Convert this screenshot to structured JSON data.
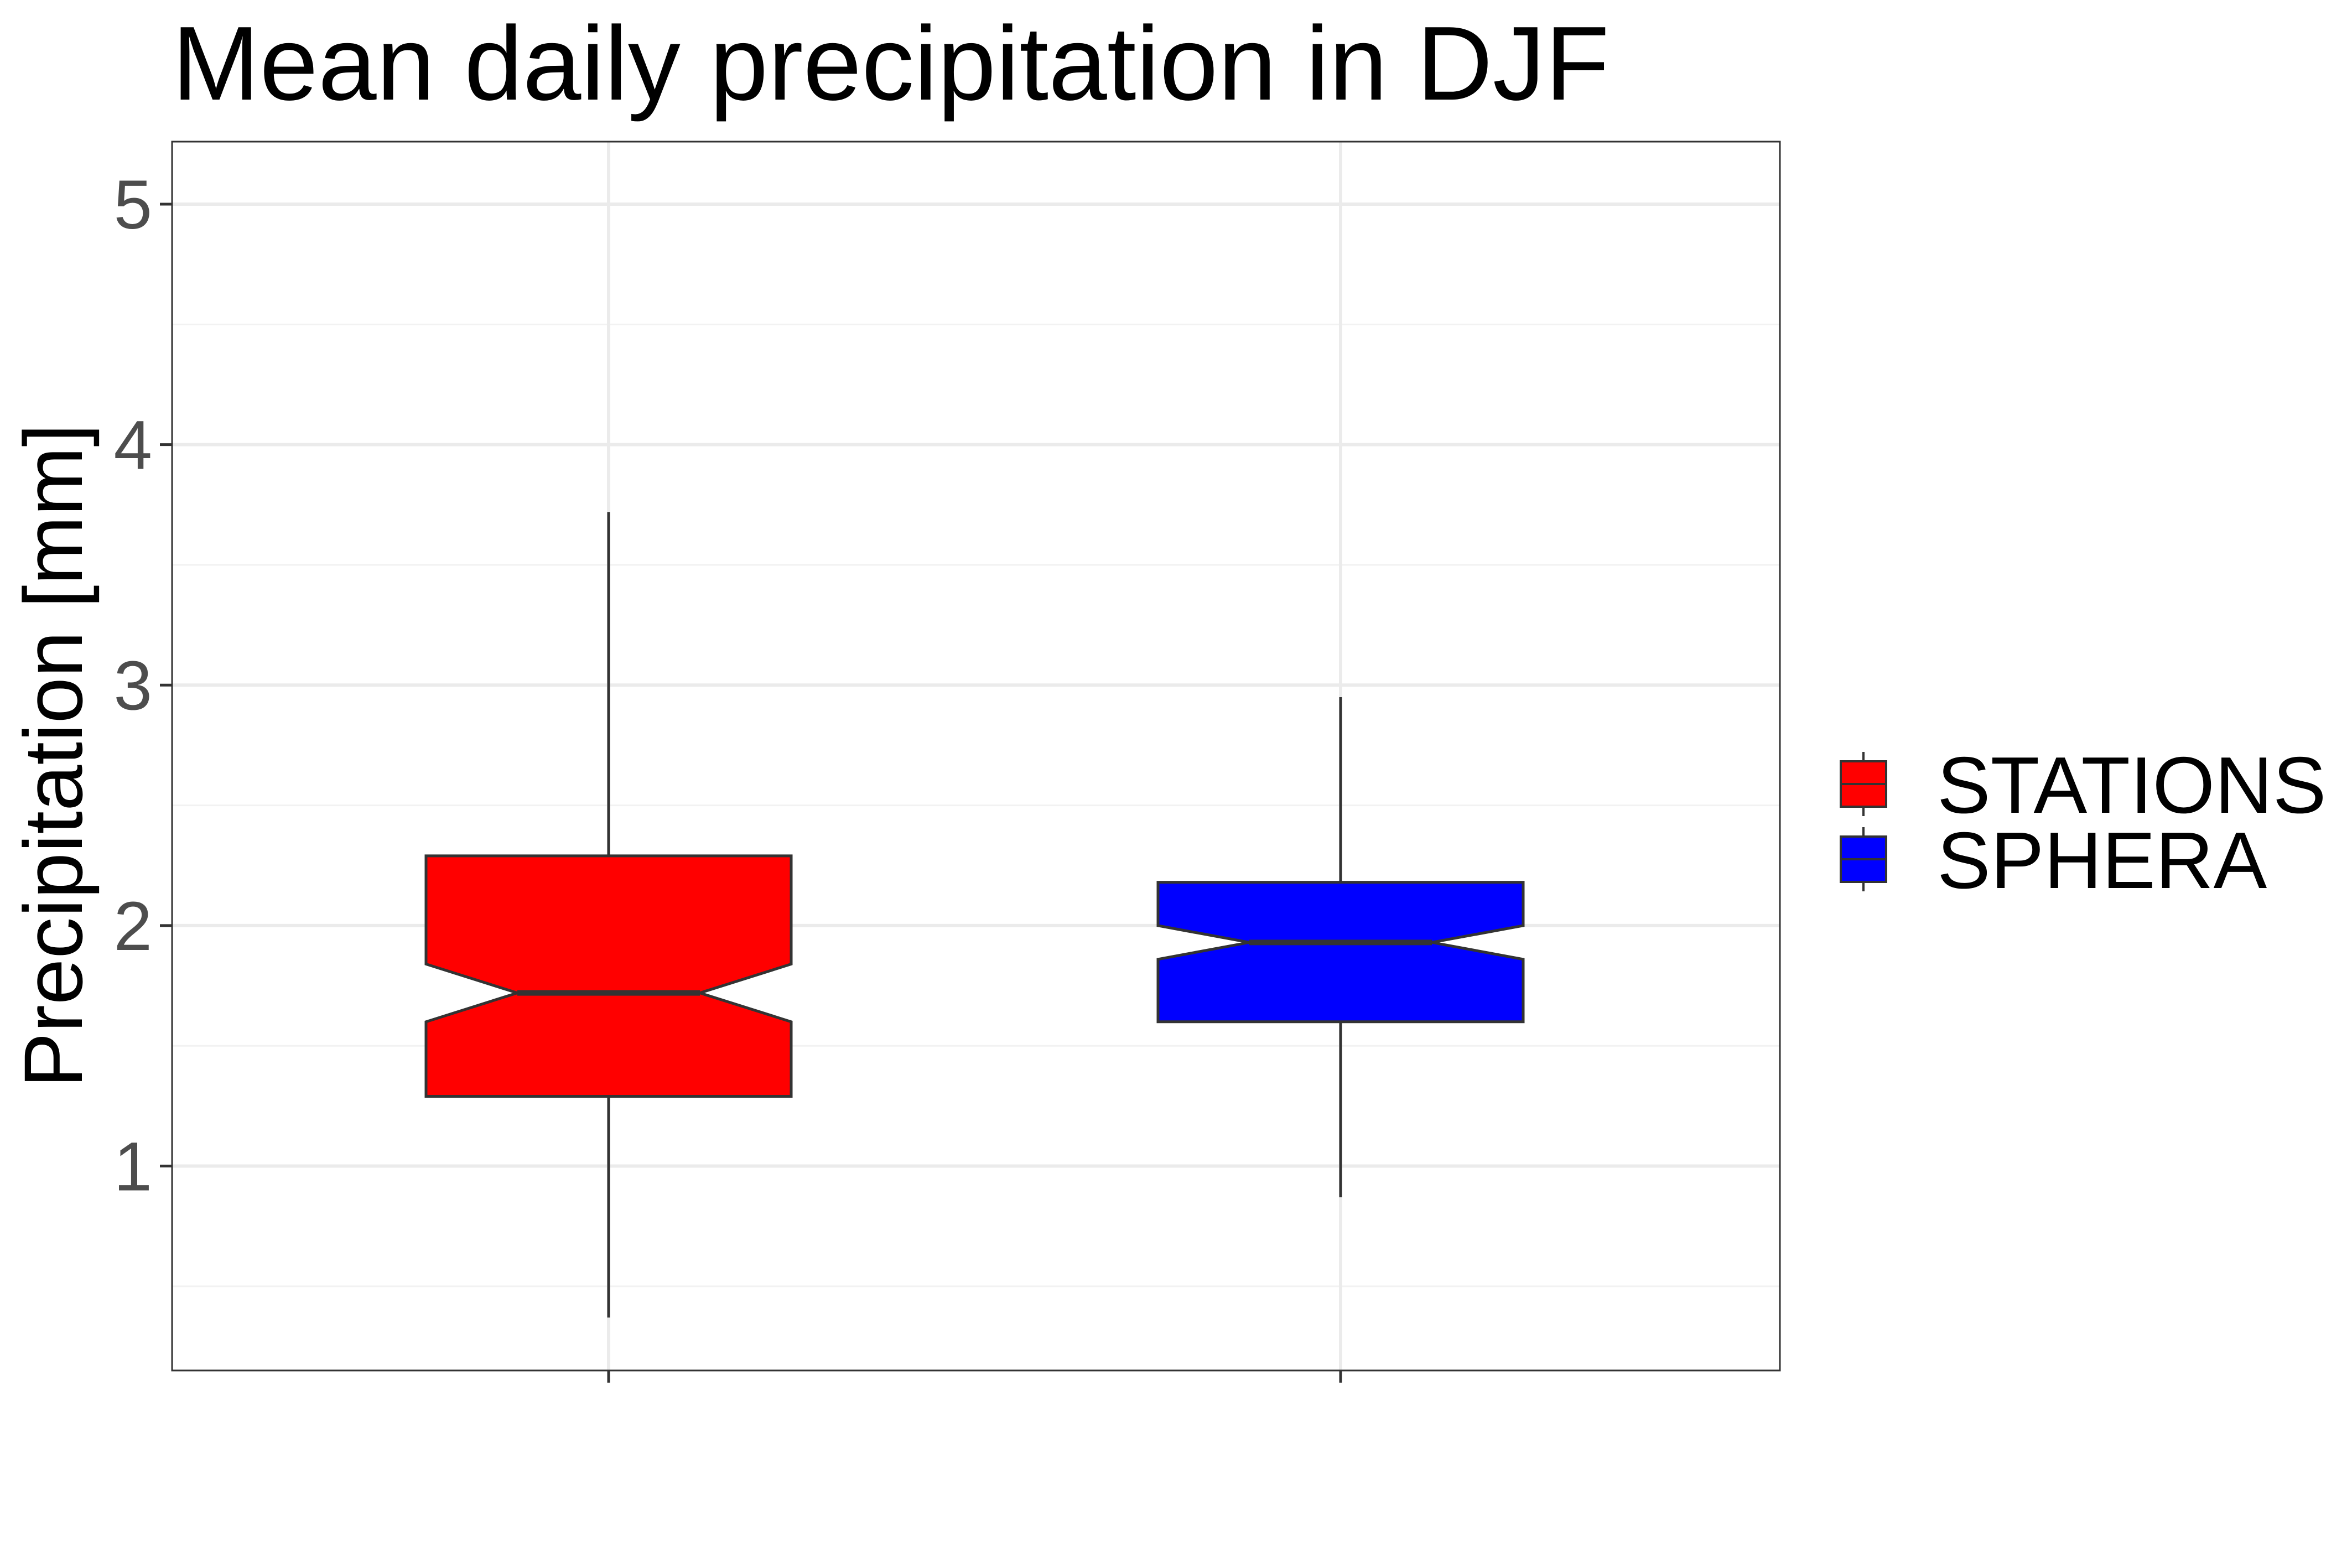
{
  "chart_data": {
    "type": "boxplot",
    "title": "Mean daily precipitation in DJF",
    "xlabel": "",
    "ylabel": "Precipitation [mm]",
    "ylim": [
      0.15,
      5.26
    ],
    "yticks": [
      1,
      2,
      3,
      4,
      5
    ],
    "tick_labels": [
      "1",
      "2",
      "3",
      "4",
      "5"
    ],
    "grid": true,
    "notched": true,
    "legend_position": "right",
    "series": [
      {
        "name": "STATIONS",
        "color": "#ff0000",
        "whisker_low": 0.37,
        "q1": 1.29,
        "notch_low": 1.6,
        "median": 1.72,
        "notch_high": 1.84,
        "q3": 2.29,
        "whisker_high": 3.72
      },
      {
        "name": "SPHERA",
        "color": "#0000ff",
        "whisker_low": 0.87,
        "q1": 1.6,
        "notch_low": 1.86,
        "median": 1.93,
        "notch_high": 2.0,
        "q3": 2.18,
        "whisker_high": 2.95
      }
    ]
  }
}
